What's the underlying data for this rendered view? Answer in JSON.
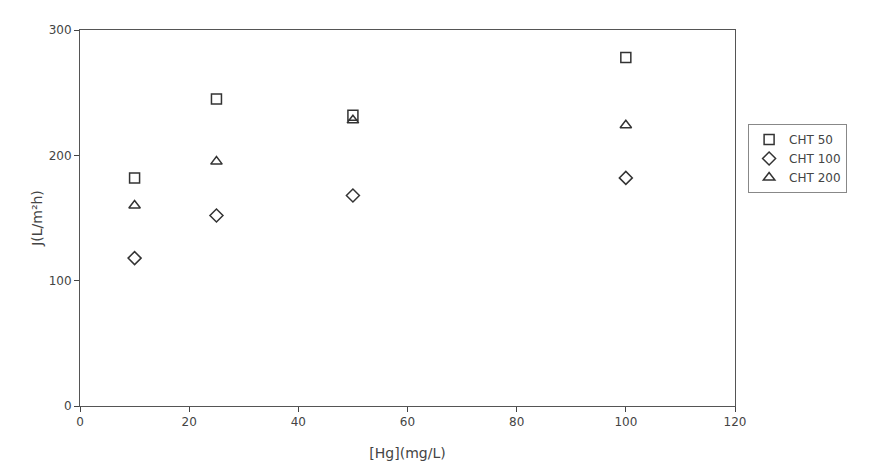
{
  "chart_data": {
    "type": "scatter",
    "xlabel": "[Hg](mg/L)",
    "ylabel": "J(L/m²h)",
    "x": [
      10,
      25,
      50,
      100
    ],
    "series": [
      {
        "name": "CHT 50",
        "color": "#333333",
        "marker": "square-open",
        "values": [
          182,
          245,
          232,
          278
        ]
      },
      {
        "name": "CHT 100",
        "color": "#333333",
        "marker": "diamond-open",
        "values": [
          118,
          152,
          168,
          182
        ]
      },
      {
        "name": "CHT 200",
        "color": "#333333",
        "marker": "triangle-up-open",
        "values": [
          160,
          195,
          228,
          224
        ]
      }
    ],
    "xlim": [
      0,
      120
    ],
    "ylim": [
      0,
      300
    ],
    "xticks": [
      0,
      20,
      40,
      60,
      80,
      100,
      120
    ],
    "yticks": [
      0,
      100,
      200,
      300
    ],
    "grid": false,
    "legend": "right"
  }
}
